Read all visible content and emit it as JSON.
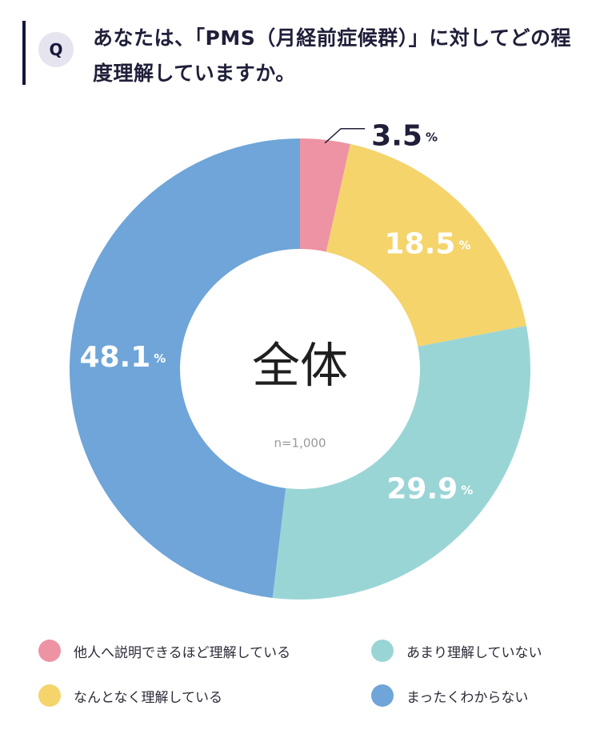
{
  "question": {
    "badge": "Q",
    "text": "あなたは、「PMS（月経前症候群）」に対してどの程度理解していますか。"
  },
  "chart_data": {
    "type": "pie",
    "center_label": "全体",
    "sample_label": "n=1,000",
    "slices": [
      {
        "label": "他人へ説明できるほど理解している",
        "value": 3.5,
        "value_text": "3.5",
        "color": "#ee93a3"
      },
      {
        "label": "なんとなく理解している",
        "value": 18.5,
        "value_text": "18.5",
        "color": "#f5d46b"
      },
      {
        "label": "あまり理解していない",
        "value": 29.9,
        "value_text": "29.9",
        "color": "#9ad5d6"
      },
      {
        "label": "まったくわからない",
        "value": 48.1,
        "value_text": "48.1",
        "color": "#6fa5d8"
      }
    ],
    "unit": "%"
  }
}
